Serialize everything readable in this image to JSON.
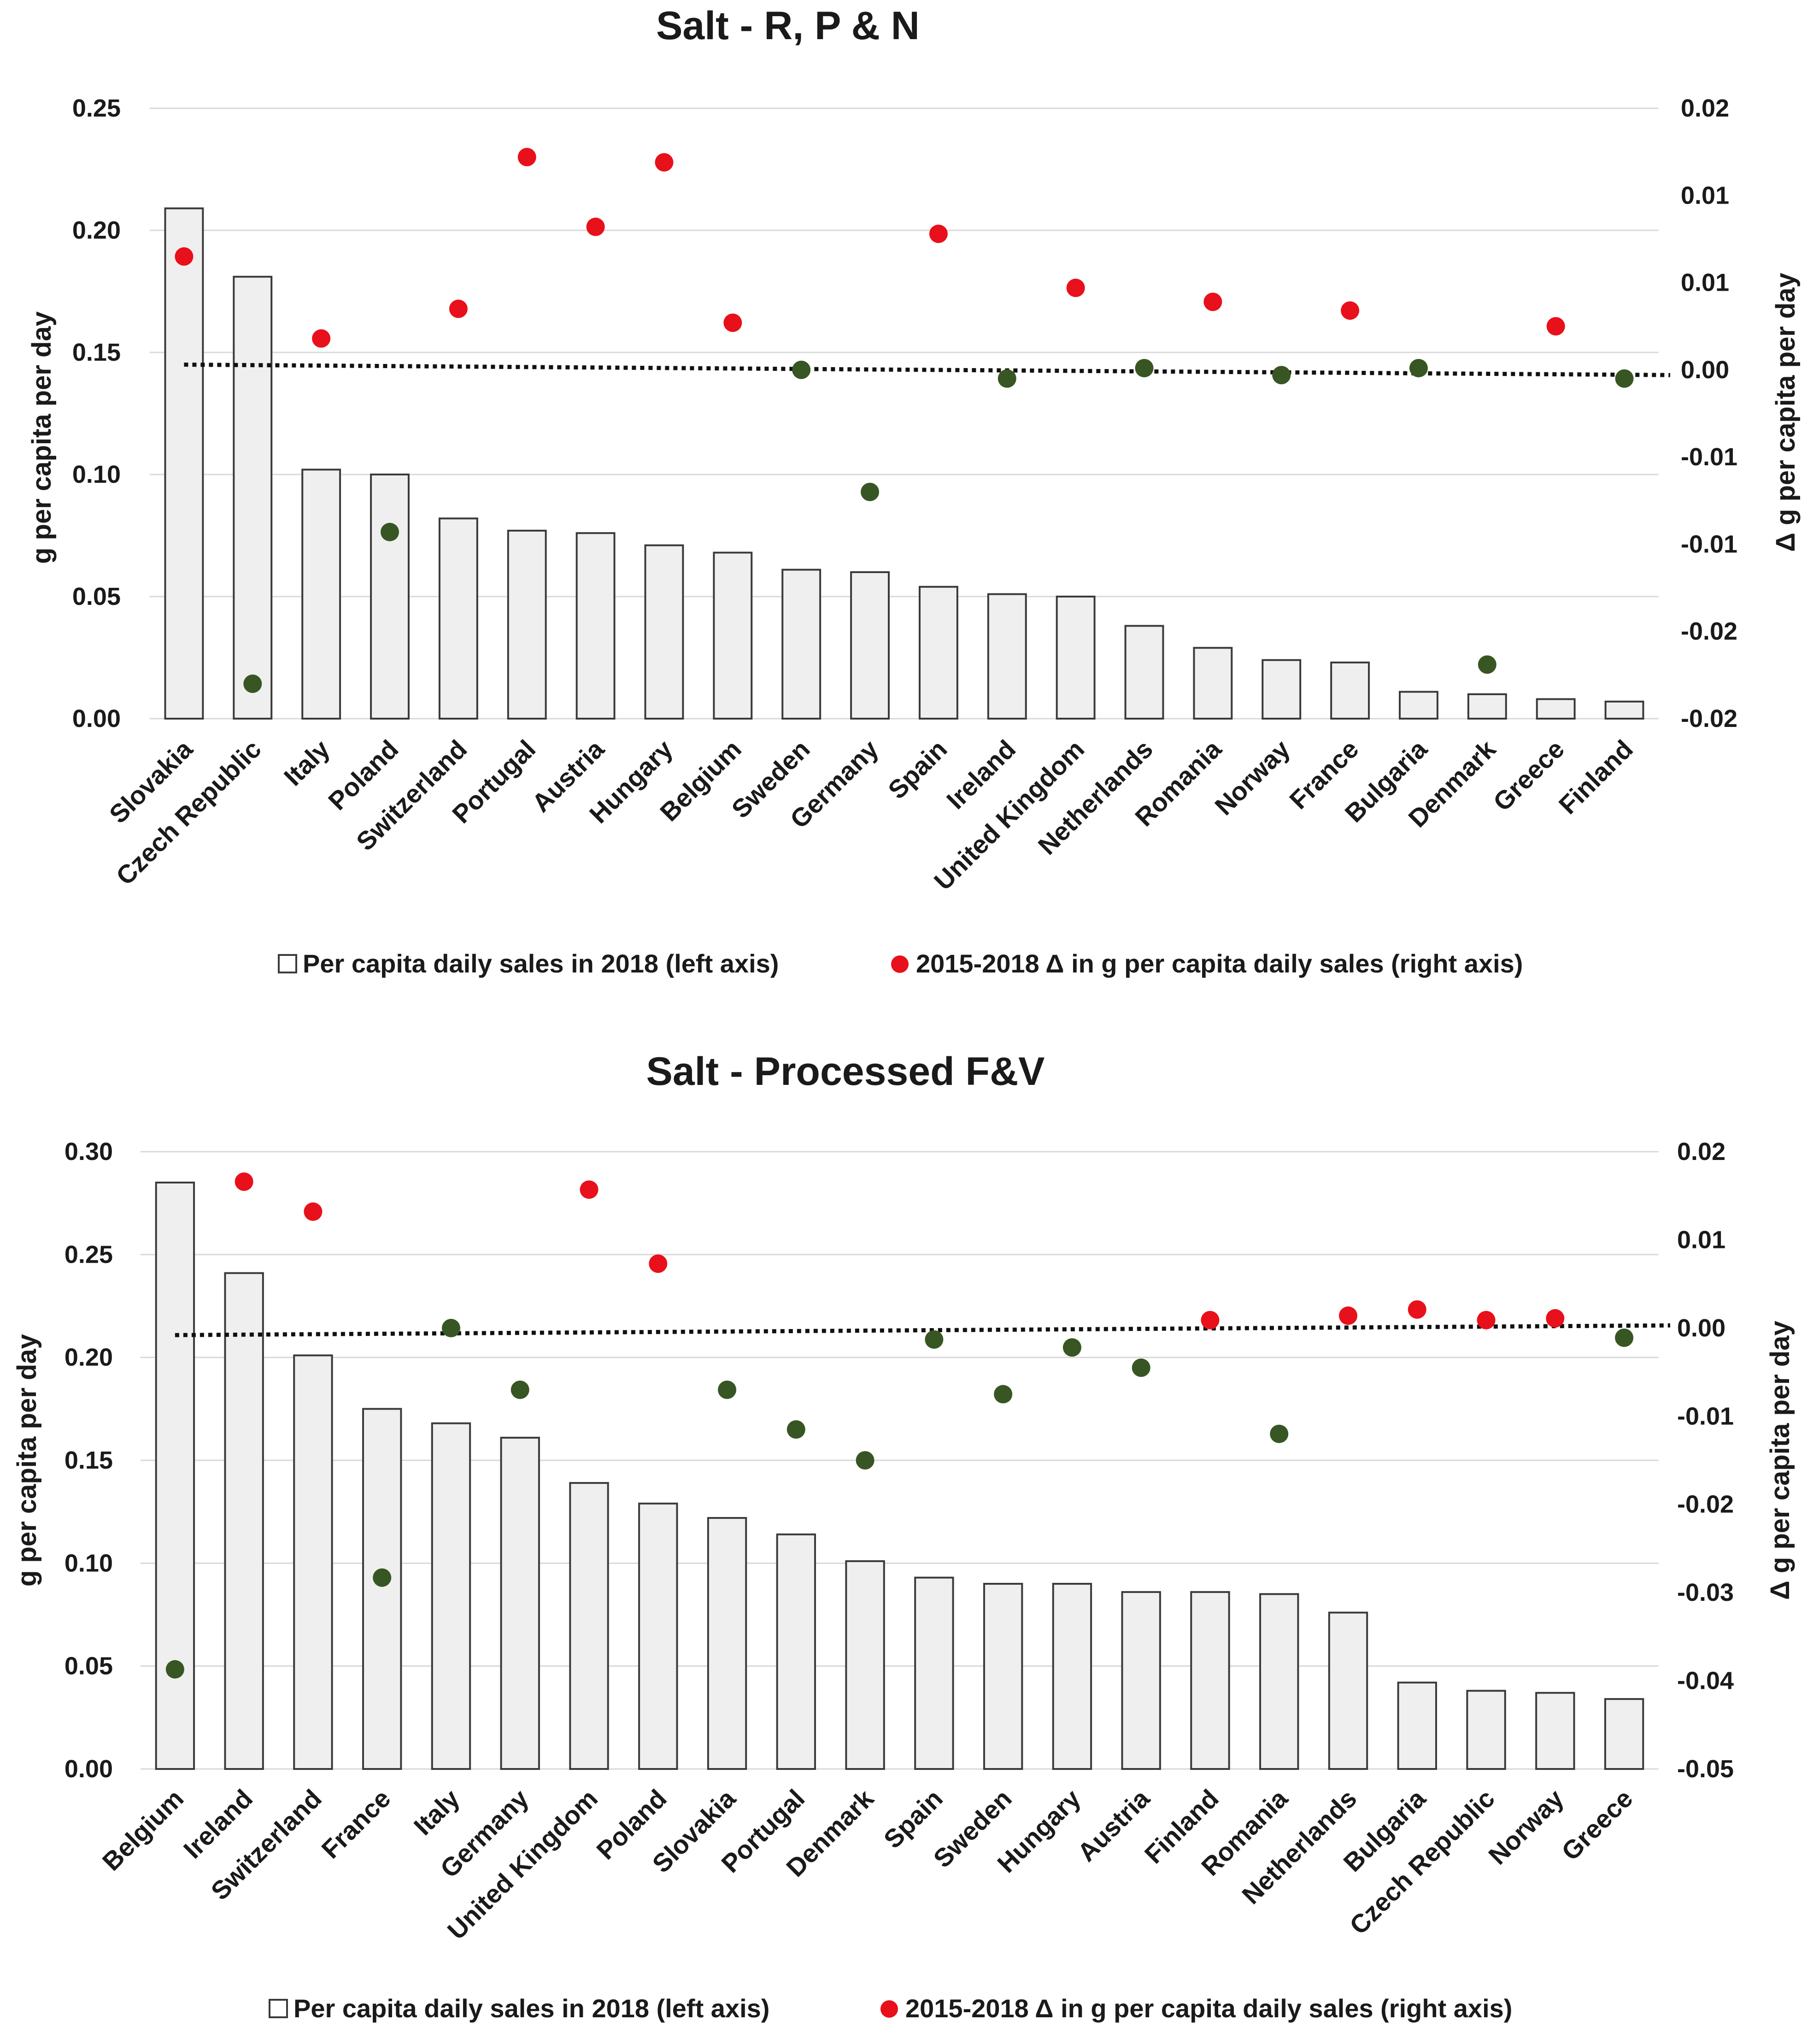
{
  "colors": {
    "bar_fill": "#efefef",
    "bar_stroke": "#3a3a3a",
    "positive_dot": "#e8101a",
    "negative_dot": "#375623",
    "grid": "#d9d9d9",
    "trend": "#111111",
    "text": "#1a1a1a"
  },
  "chart_data": [
    {
      "type": "bar",
      "title": "Salt - R, P & N",
      "ylabel": "g per capita per day",
      "y2label": "Δ g per capita per day",
      "ylim": [
        0,
        0.25
      ],
      "yticks": [
        0,
        0.05,
        0.1,
        0.15,
        0.2,
        0.25
      ],
      "ytick_labels": [
        "0.00",
        "0.05",
        "0.10",
        "0.15",
        "0.20",
        "0.25"
      ],
      "y2lim": [
        -0.02,
        0.015
      ],
      "y2ticks": [
        -0.02,
        -0.015,
        -0.01,
        -0.005,
        0,
        0.005,
        0.01,
        0.015
      ],
      "y2tick_labels": [
        "-0.02",
        "-0.02",
        "-0.01",
        "-0.01",
        "0.00",
        "0.01",
        "0.01",
        "0.02"
      ],
      "categories": [
        "Slovakia",
        "Czech Republic",
        "Italy",
        "Poland",
        "Switzerland",
        "Portugal",
        "Austria",
        "Hungary",
        "Belgium",
        "Sweden",
        "Germany",
        "Spain",
        "Ireland",
        "United Kingdom",
        "Netherlands",
        "Romania",
        "Norway",
        "France",
        "Bulgaria",
        "Denmark",
        "Greece",
        "Finland"
      ],
      "values": [
        0.209,
        0.181,
        0.102,
        0.1,
        0.082,
        0.077,
        0.076,
        0.071,
        0.068,
        0.061,
        0.06,
        0.054,
        0.051,
        0.05,
        0.038,
        0.029,
        0.024,
        0.023,
        0.011,
        0.01,
        0.008,
        0.007
      ],
      "delta_series": {
        "name": "2015-2018  Δ in g per capita daily sales (right axis)",
        "axis": "right",
        "values": [
          0.0065,
          -0.018,
          0.0018,
          -0.0093,
          0.0035,
          0.0122,
          0.0082,
          0.0119,
          0.0027,
          0.0,
          -0.007,
          0.0078,
          -0.0005,
          0.0047,
          0.0001,
          0.0039,
          -0.0003,
          0.0034,
          0.0001,
          -0.0169,
          0.0025,
          -0.0005
        ]
      },
      "trendline": {
        "start": 0.0003,
        "end": -0.0003
      },
      "legend": [
        "Per capita daily sales in 2018 (left axis)",
        "2015-2018  Δ in g per capita daily sales (right axis)"
      ]
    },
    {
      "type": "bar",
      "title": "Salt - Processed F&V",
      "ylabel": "g per capita per day",
      "y2label": "Δ g per capita per day",
      "ylim": [
        0,
        0.3
      ],
      "yticks": [
        0,
        0.05,
        0.1,
        0.15,
        0.2,
        0.25,
        0.3
      ],
      "ytick_labels": [
        "0.00",
        "0.05",
        "0.10",
        "0.15",
        "0.20",
        "0.25",
        "0.30"
      ],
      "y2lim": [
        -0.05,
        0.02
      ],
      "y2ticks": [
        -0.05,
        -0.04,
        -0.03,
        -0.02,
        -0.01,
        0,
        0.01,
        0.02
      ],
      "y2tick_labels": [
        "-0.05",
        "-0.04",
        "-0.03",
        "-0.02",
        "-0.01",
        "0.00",
        "0.01",
        "0.02"
      ],
      "categories": [
        "Belgium",
        "Ireland",
        "Switzerland",
        "France",
        "Italy",
        "Germany",
        "United Kingdom",
        "Poland",
        "Slovakia",
        "Portugal",
        "Denmark",
        "Spain",
        "Sweden",
        "Hungary",
        "Austria",
        "Finland",
        "Romania",
        "Netherlands",
        "Bulgaria",
        "Czech Republic",
        "Norway",
        "Greece"
      ],
      "values": [
        0.285,
        0.241,
        0.201,
        0.175,
        0.168,
        0.161,
        0.139,
        0.129,
        0.122,
        0.114,
        0.101,
        0.093,
        0.09,
        0.09,
        0.086,
        0.086,
        0.085,
        0.076,
        0.042,
        0.038,
        0.037,
        0.034
      ],
      "delta_series": {
        "name": "2015-2018  Δ in g per capita daily sales (right axis)",
        "axis": "right",
        "values": [
          -0.0387,
          0.0166,
          0.0132,
          -0.0283,
          0.0,
          -0.007,
          0.0157,
          0.0073,
          -0.007,
          -0.0115,
          -0.015,
          -0.0013,
          -0.0075,
          -0.0022,
          -0.0045,
          0.0009,
          -0.012,
          0.0014,
          0.0021,
          0.0009,
          0.0011,
          -0.0011
        ]
      },
      "trendline": {
        "start": -0.0008,
        "end": 0.0003
      },
      "legend": [
        "Per capita daily sales in 2018 (left axis)",
        "2015-2018  Δ in g per capita daily sales (right axis)"
      ]
    }
  ]
}
